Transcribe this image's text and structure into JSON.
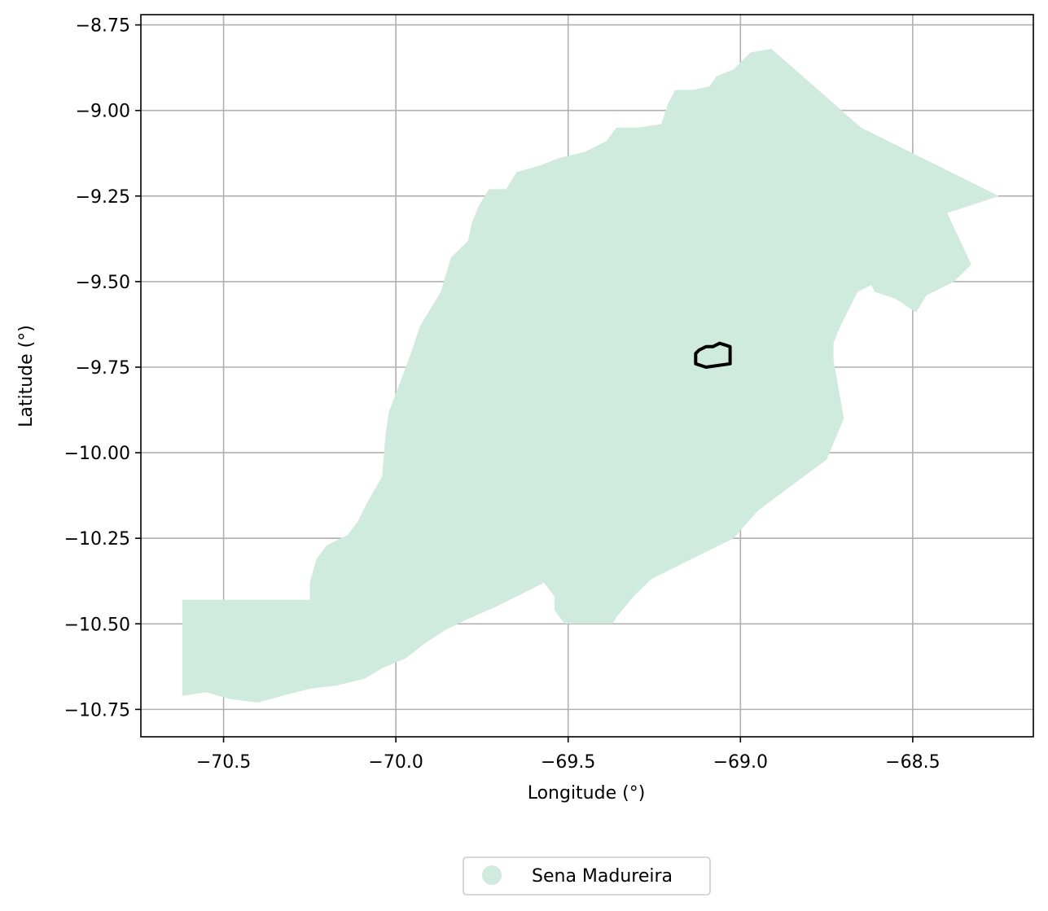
{
  "map": {
    "x_axis": {
      "label": "Longitude (°)",
      "range": [
        -70.74,
        -68.15
      ],
      "ticks": [
        {
          "value": -70.5,
          "label": "−70.5"
        },
        {
          "value": -70.0,
          "label": "−70.0"
        },
        {
          "value": -69.5,
          "label": "−69.5"
        },
        {
          "value": -69.0,
          "label": "−69.0"
        },
        {
          "value": -68.5,
          "label": "−68.5"
        }
      ]
    },
    "y_axis": {
      "label": "Latitude (°)",
      "range": [
        -10.83,
        -8.72
      ],
      "ticks": [
        {
          "value": -8.75,
          "label": "−8.75"
        },
        {
          "value": -9.0,
          "label": "−9.00"
        },
        {
          "value": -9.25,
          "label": "−9.25"
        },
        {
          "value": -9.5,
          "label": "−9.50"
        },
        {
          "value": -9.75,
          "label": "−9.75"
        },
        {
          "value": -10.0,
          "label": "−10.00"
        },
        {
          "value": -10.25,
          "label": "−10.25"
        },
        {
          "value": -10.5,
          "label": "−10.50"
        },
        {
          "value": -10.75,
          "label": "−10.75"
        }
      ]
    },
    "grid": true,
    "legend": {
      "placement": "bottom-center",
      "entries": [
        {
          "label": "Sena Madureira",
          "color": "#cfebdd"
        }
      ]
    },
    "colors": {
      "region_fill": "#cfebdd",
      "urban_outline": "#000000",
      "grid": "#b0b0b0",
      "frame": "#000000"
    },
    "region_polygon": [
      [
        -70.62,
        -10.43
      ],
      [
        -70.25,
        -10.43
      ],
      [
        -70.25,
        -10.38
      ],
      [
        -70.23,
        -10.31
      ],
      [
        -70.2,
        -10.27
      ],
      [
        -70.14,
        -10.24
      ],
      [
        -70.11,
        -10.2
      ],
      [
        -70.08,
        -10.14
      ],
      [
        -70.04,
        -10.07
      ],
      [
        -70.03,
        -9.95
      ],
      [
        -70.02,
        -9.88
      ],
      [
        -69.99,
        -9.8
      ],
      [
        -69.96,
        -9.72
      ],
      [
        -69.93,
        -9.63
      ],
      [
        -69.87,
        -9.53
      ],
      [
        -69.84,
        -9.43
      ],
      [
        -69.79,
        -9.38
      ],
      [
        -69.78,
        -9.33
      ],
      [
        -69.76,
        -9.28
      ],
      [
        -69.73,
        -9.23
      ],
      [
        -69.68,
        -9.23
      ],
      [
        -69.65,
        -9.18
      ],
      [
        -69.58,
        -9.16
      ],
      [
        -69.53,
        -9.14
      ],
      [
        -69.45,
        -9.12
      ],
      [
        -69.39,
        -9.09
      ],
      [
        -69.36,
        -9.05
      ],
      [
        -69.3,
        -9.05
      ],
      [
        -69.23,
        -9.04
      ],
      [
        -69.21,
        -8.98
      ],
      [
        -69.19,
        -8.94
      ],
      [
        -69.14,
        -8.94
      ],
      [
        -69.09,
        -8.93
      ],
      [
        -69.07,
        -8.9
      ],
      [
        -69.02,
        -8.88
      ],
      [
        -68.99,
        -8.85
      ],
      [
        -68.97,
        -8.83
      ],
      [
        -68.91,
        -8.82
      ],
      [
        -68.65,
        -9.05
      ],
      [
        -68.25,
        -9.25
      ],
      [
        -68.4,
        -9.3
      ],
      [
        -68.33,
        -9.45
      ],
      [
        -68.38,
        -9.5
      ],
      [
        -68.46,
        -9.54
      ],
      [
        -68.49,
        -9.59
      ],
      [
        -68.55,
        -9.55
      ],
      [
        -68.61,
        -9.53
      ],
      [
        -68.62,
        -9.51
      ],
      [
        -68.66,
        -9.53
      ],
      [
        -68.71,
        -9.63
      ],
      [
        -68.73,
        -9.68
      ],
      [
        -68.73,
        -9.73
      ],
      [
        -68.7,
        -9.9
      ],
      [
        -68.75,
        -10.02
      ],
      [
        -68.87,
        -10.11
      ],
      [
        -68.95,
        -10.17
      ],
      [
        -69.02,
        -10.25
      ],
      [
        -69.1,
        -10.29
      ],
      [
        -69.18,
        -10.33
      ],
      [
        -69.26,
        -10.37
      ],
      [
        -69.31,
        -10.42
      ],
      [
        -69.36,
        -10.48
      ],
      [
        -69.37,
        -10.5
      ],
      [
        -69.48,
        -10.5
      ],
      [
        -69.51,
        -10.5
      ],
      [
        -69.54,
        -10.46
      ],
      [
        -69.54,
        -10.42
      ],
      [
        -69.57,
        -10.38
      ],
      [
        -69.63,
        -10.41
      ],
      [
        -69.71,
        -10.45
      ],
      [
        -69.8,
        -10.49
      ],
      [
        -69.86,
        -10.52
      ],
      [
        -69.92,
        -10.56
      ],
      [
        -69.97,
        -10.6
      ],
      [
        -70.04,
        -10.63
      ],
      [
        -70.09,
        -10.66
      ],
      [
        -70.17,
        -10.68
      ],
      [
        -70.25,
        -10.69
      ],
      [
        -70.33,
        -10.71
      ],
      [
        -70.4,
        -10.73
      ],
      [
        -70.48,
        -10.72
      ],
      [
        -70.55,
        -10.7
      ],
      [
        -70.62,
        -10.71
      ]
    ],
    "urban_outline": [
      [
        -69.13,
        -9.71
      ],
      [
        -69.12,
        -9.7
      ],
      [
        -69.1,
        -9.69
      ],
      [
        -69.08,
        -9.69
      ],
      [
        -69.06,
        -9.68
      ],
      [
        -69.03,
        -9.69
      ],
      [
        -69.03,
        -9.74
      ],
      [
        -69.1,
        -9.75
      ],
      [
        -69.13,
        -9.74
      ]
    ]
  }
}
